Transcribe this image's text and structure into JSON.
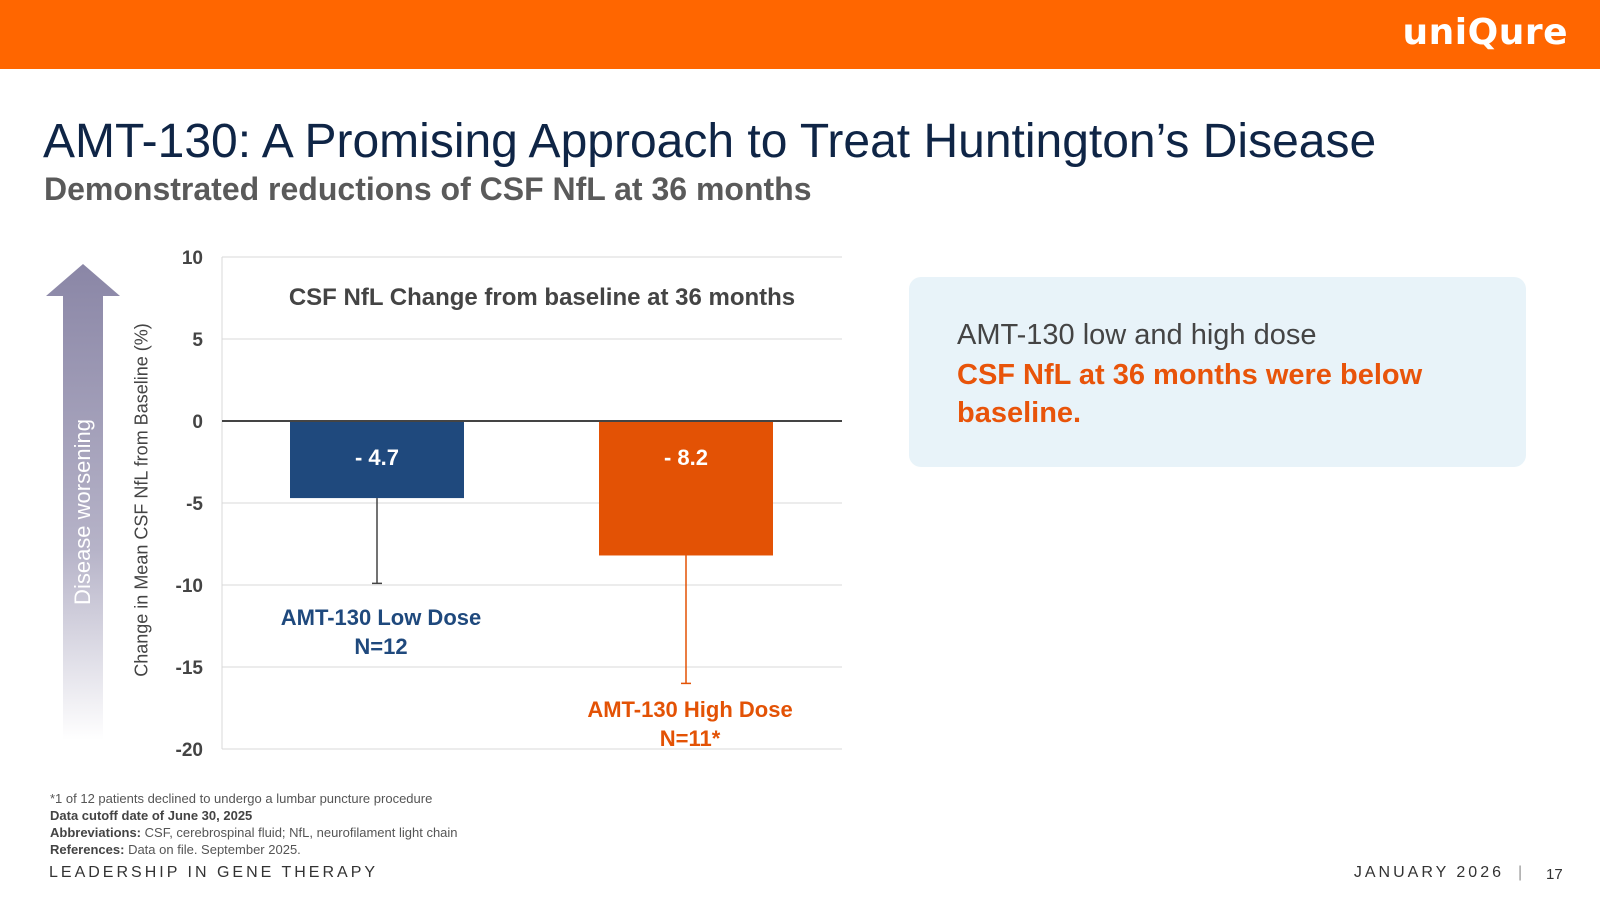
{
  "header": {
    "logo_text": "uniQure",
    "bar_color": "#ff6600"
  },
  "title": "AMT-130: A Promising Approach to Treat Huntington’s Disease",
  "subtitle": "Demonstrated reductions of CSF NfL at 36 months",
  "arrow": {
    "label": "Disease worsening",
    "direction": "up"
  },
  "chart_data": {
    "type": "bar",
    "title": "CSF NfL Change from baseline at 36 months",
    "xlabel": "",
    "ylabel": "Change in Mean CSF NfL from Baseline (%)",
    "ylim": [
      -20,
      10
    ],
    "yticks": [
      10,
      5,
      0,
      -5,
      -10,
      -15,
      -20
    ],
    "ytick_labels": [
      "10",
      "5",
      "0",
      "-5",
      "-10",
      "-15",
      "-20"
    ],
    "grid": true,
    "categories": [
      "AMT-130 Low Dose",
      "AMT-130 High Dose"
    ],
    "values": [
      -4.7,
      -8.2
    ],
    "value_labels": [
      "- 4.7",
      "- 8.2"
    ],
    "error_lower": [
      -9.9,
      -16.0
    ],
    "colors": [
      "#1f497d",
      "#e35205"
    ],
    "category_labels": [
      {
        "line1": "AMT-130 Low Dose",
        "line2": "N=12"
      },
      {
        "line1": "AMT-130 High Dose",
        "line2": "N=11*"
      }
    ]
  },
  "callout": {
    "line1": "AMT-130 low and high dose",
    "line2": "CSF NfL at 36 months were below baseline."
  },
  "footnotes": {
    "note1": "*1 of 12 patients declined to undergo a lumbar puncture procedure",
    "cutoff": "Data cutoff date of June 30, 2025",
    "abbrev_label": "Abbreviations:",
    "abbrev_text": "CSF, cerebrospinal fluid; NfL, neurofilament light chain",
    "ref_label": "References:",
    "ref_text": "Data on file. September 2025."
  },
  "footer": {
    "left": "LEADERSHIP IN GENE THERAPY",
    "date": "JANUARY 2026",
    "separator": "|",
    "page": "17"
  }
}
